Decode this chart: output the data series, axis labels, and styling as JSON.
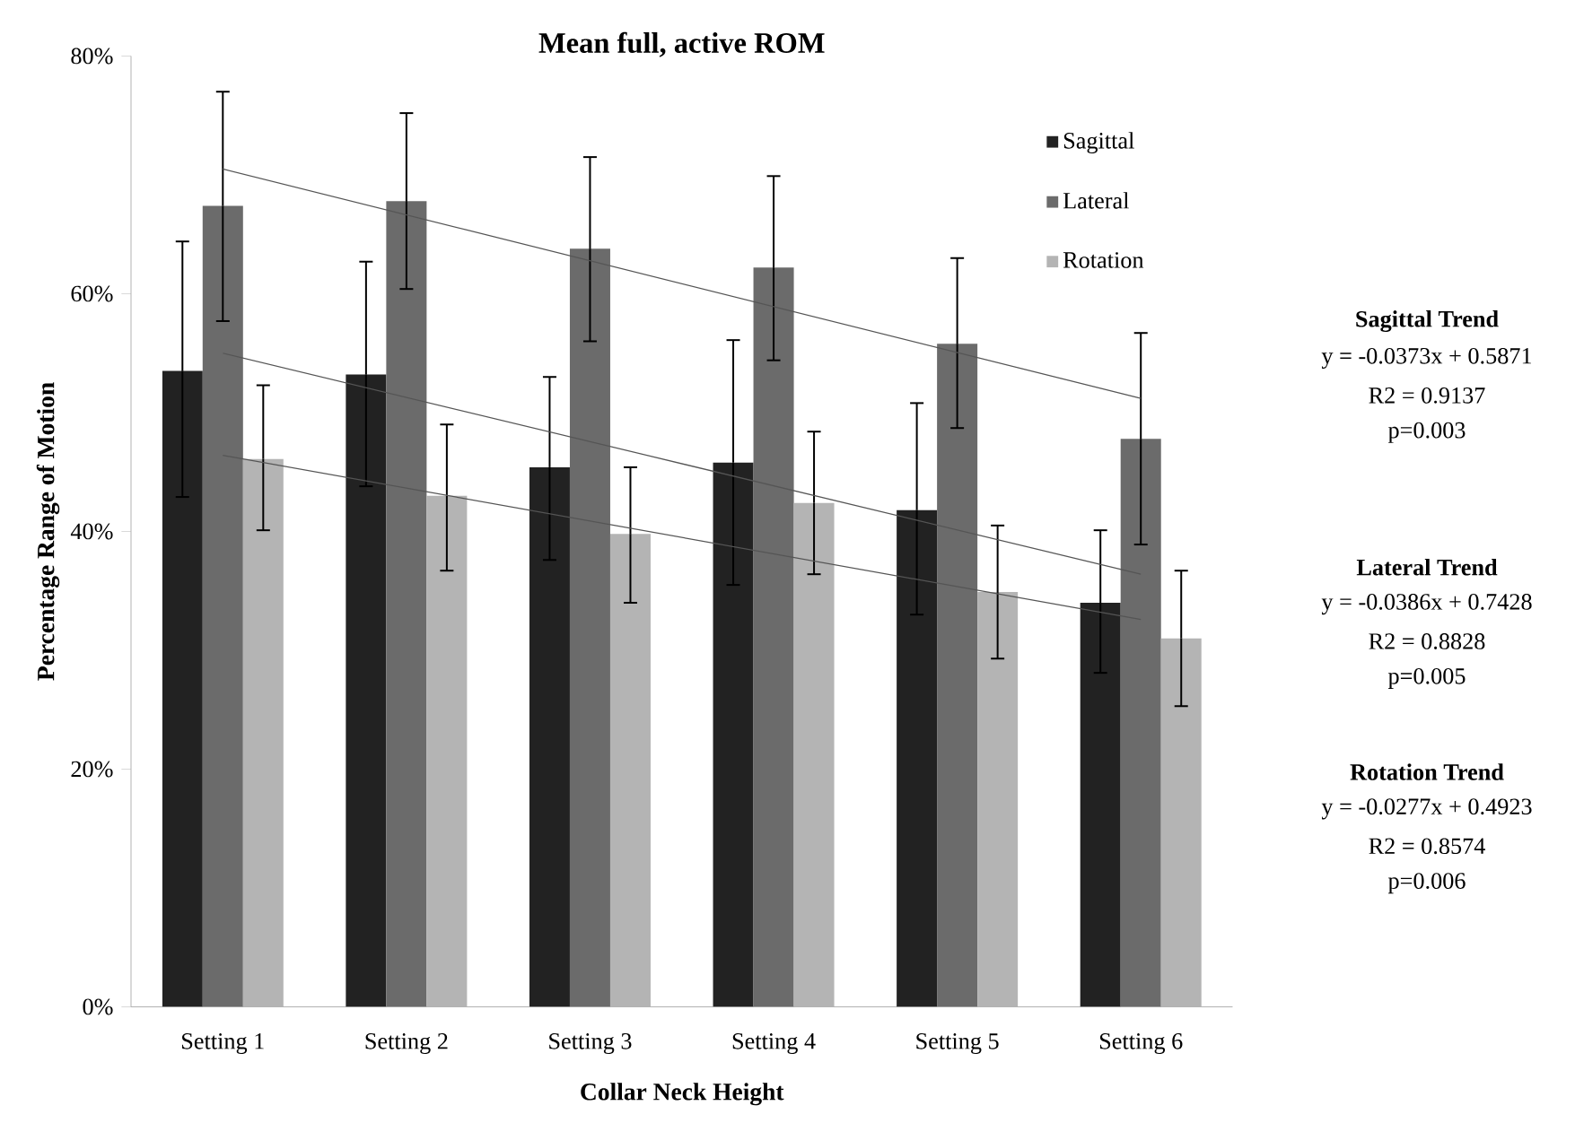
{
  "chart_data": {
    "type": "bar",
    "title": "Mean full, active ROM",
    "xlabel": "Collar Neck Height",
    "ylabel": "Percentage Range of Motion",
    "categories": [
      "Setting 1",
      "Setting 2",
      "Setting 3",
      "Setting 4",
      "Setting 5",
      "Setting 6"
    ],
    "series": [
      {
        "name": "Sagittal",
        "color": "#222222",
        "values": [
          53.5,
          53.2,
          45.4,
          45.8,
          41.8,
          34.0
        ],
        "errors": [
          [
            42.9,
            64.4
          ],
          [
            43.8,
            62.7
          ],
          [
            37.6,
            53.0
          ],
          [
            35.5,
            56.1
          ],
          [
            33.0,
            50.8
          ],
          [
            28.1,
            40.1
          ]
        ]
      },
      {
        "name": "Lateral",
        "color": "#6b6b6b",
        "values": [
          67.4,
          67.8,
          63.8,
          62.2,
          55.8,
          47.8
        ],
        "errors": [
          [
            57.7,
            77.0
          ],
          [
            60.4,
            75.2
          ],
          [
            56.0,
            71.5
          ],
          [
            54.4,
            69.9
          ],
          [
            48.7,
            63.0
          ],
          [
            38.9,
            56.7
          ]
        ]
      },
      {
        "name": "Rotation",
        "color": "#b4b4b4",
        "values": [
          46.1,
          43.0,
          39.8,
          42.4,
          34.9,
          31.0
        ],
        "errors": [
          [
            40.1,
            52.3
          ],
          [
            36.7,
            49.0
          ],
          [
            34.0,
            45.4
          ],
          [
            36.4,
            48.4
          ],
          [
            29.3,
            40.5
          ],
          [
            25.3,
            36.7
          ]
        ]
      },
      {
        "type": "line",
        "color": "#555555",
        "x": [
          "Setting 1",
          "Setting 6"
        ],
        "values": [
          70.5,
          51.2
        ]
      },
      {
        "type": "line",
        "color": "#555555",
        "x": [
          "Setting 1",
          "Setting 6"
        ],
        "values": [
          55.0,
          36.4
        ]
      },
      {
        "type": "line",
        "color": "#555555",
        "x": [
          "Setting 1",
          "Setting 6"
        ],
        "values": [
          46.4,
          32.6
        ]
      }
    ],
    "ylim": [
      0,
      80
    ],
    "yticks": [
      {
        "value": 0,
        "label": "0%"
      },
      {
        "value": 20,
        "label": "20%"
      },
      {
        "value": 40,
        "label": "40%"
      },
      {
        "value": 60,
        "label": "60%"
      },
      {
        "value": 80,
        "label": "80%"
      }
    ],
    "legend": "top right",
    "annotations": [
      "Sagittal Trend",
      "y = -0.0373x + 0.5871",
      "R2 = 0.9137",
      "p=0.003",
      "Lateral Trend",
      "y = -0.0386x + 0.7428",
      "R2 = 0.8828",
      "p=0.005",
      "Rotation Trend",
      "y = -0.0277x + 0.4923",
      "R2 = 0.8574",
      "p=0.006"
    ]
  }
}
